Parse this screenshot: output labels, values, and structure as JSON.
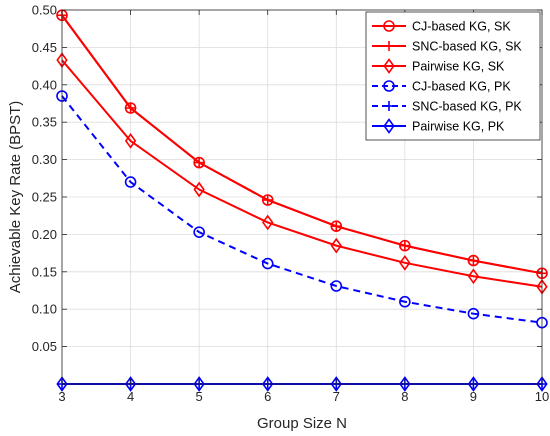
{
  "chart_data": {
    "type": "line",
    "xlabel": "Group Size N",
    "ylabel": "Achievable Key Rate (BPST)",
    "xlim": [
      3,
      10
    ],
    "ylim": [
      0,
      0.5
    ],
    "xticks": [
      3,
      4,
      5,
      6,
      7,
      8,
      9,
      10
    ],
    "xtick_labels": [
      "3",
      "4",
      "5",
      "6",
      "7",
      "8",
      "9",
      "10"
    ],
    "yticks": [
      0.05,
      0.1,
      0.15,
      0.2,
      0.25,
      0.3,
      0.35,
      0.4,
      0.45,
      0.5
    ],
    "ytick_labels": [
      "0.05",
      "0.10",
      "0.15",
      "0.20",
      "0.25",
      "0.30",
      "0.35",
      "0.40",
      "0.45",
      "0.50"
    ],
    "grid": true,
    "legend_position": "top-right",
    "x": [
      3,
      4,
      5,
      6,
      7,
      8,
      9,
      10
    ],
    "series": [
      {
        "name": "CJ-based KG, SK",
        "color": "#ff0000",
        "line": "solid",
        "marker": "circle",
        "values": [
          0.493,
          0.369,
          0.296,
          0.246,
          0.211,
          0.185,
          0.165,
          0.148
        ]
      },
      {
        "name": "SNC-based KG, SK",
        "color": "#ff0000",
        "line": "solid",
        "marker": "plus",
        "values": [
          0.493,
          0.369,
          0.296,
          0.246,
          0.211,
          0.185,
          0.165,
          0.148
        ]
      },
      {
        "name": "Pairwise KG, SK",
        "color": "#ff0000",
        "line": "solid",
        "marker": "diamond",
        "values": [
          0.433,
          0.325,
          0.26,
          0.216,
          0.185,
          0.162,
          0.144,
          0.13
        ]
      },
      {
        "name": "CJ-based KG, PK",
        "color": "#0000ff",
        "line": "dashed",
        "marker": "circle",
        "values": [
          0.385,
          0.27,
          0.203,
          0.161,
          0.131,
          0.11,
          0.094,
          0.082
        ]
      },
      {
        "name": "SNC-based KG, PK",
        "color": "#0000ff",
        "line": "dashed",
        "marker": "plus",
        "values": [
          0,
          0,
          0,
          0,
          0,
          0,
          0,
          0
        ]
      },
      {
        "name": "Pairwise KG, PK",
        "color": "#0000ff",
        "line": "solid",
        "marker": "diamond",
        "values": [
          0,
          0,
          0,
          0,
          0,
          0,
          0,
          0
        ]
      }
    ]
  }
}
